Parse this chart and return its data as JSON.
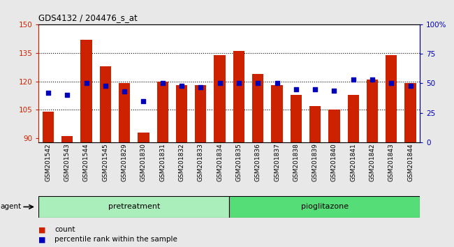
{
  "title": "GDS4132 / 204476_s_at",
  "samples": [
    "GSM201542",
    "GSM201543",
    "GSM201544",
    "GSM201545",
    "GSM201829",
    "GSM201830",
    "GSM201831",
    "GSM201832",
    "GSM201833",
    "GSM201834",
    "GSM201835",
    "GSM201836",
    "GSM201837",
    "GSM201838",
    "GSM201839",
    "GSM201840",
    "GSM201841",
    "GSM201842",
    "GSM201843",
    "GSM201844"
  ],
  "counts": [
    104,
    91,
    142,
    128,
    119,
    93,
    120,
    118,
    118,
    134,
    136,
    124,
    118,
    113,
    107,
    105,
    113,
    121,
    134,
    119
  ],
  "percentile_ranks": [
    42,
    40,
    50,
    48,
    43,
    35,
    50,
    48,
    47,
    50,
    50,
    50,
    50,
    45,
    45,
    44,
    53,
    53,
    50,
    48
  ],
  "bar_color": "#cc2200",
  "dot_color": "#0000bb",
  "ylim_left": [
    88,
    150
  ],
  "ylim_right": [
    0,
    100
  ],
  "yticks_left": [
    90,
    105,
    120,
    135,
    150
  ],
  "yticks_right": [
    0,
    25,
    50,
    75,
    100
  ],
  "ytick_right_labels": [
    "0",
    "25",
    "50",
    "75",
    "100%"
  ],
  "grid_values": [
    105,
    120,
    135
  ],
  "legend_items": [
    "count",
    "percentile rank within the sample"
  ],
  "pretreatment_color": "#aaeebb",
  "pioglitazone_color": "#55dd77",
  "fig_bg_color": "#e8e8e8",
  "plot_bg_color": "#ffffff",
  "n_pretreatment": 10,
  "n_pioglitazone": 10
}
